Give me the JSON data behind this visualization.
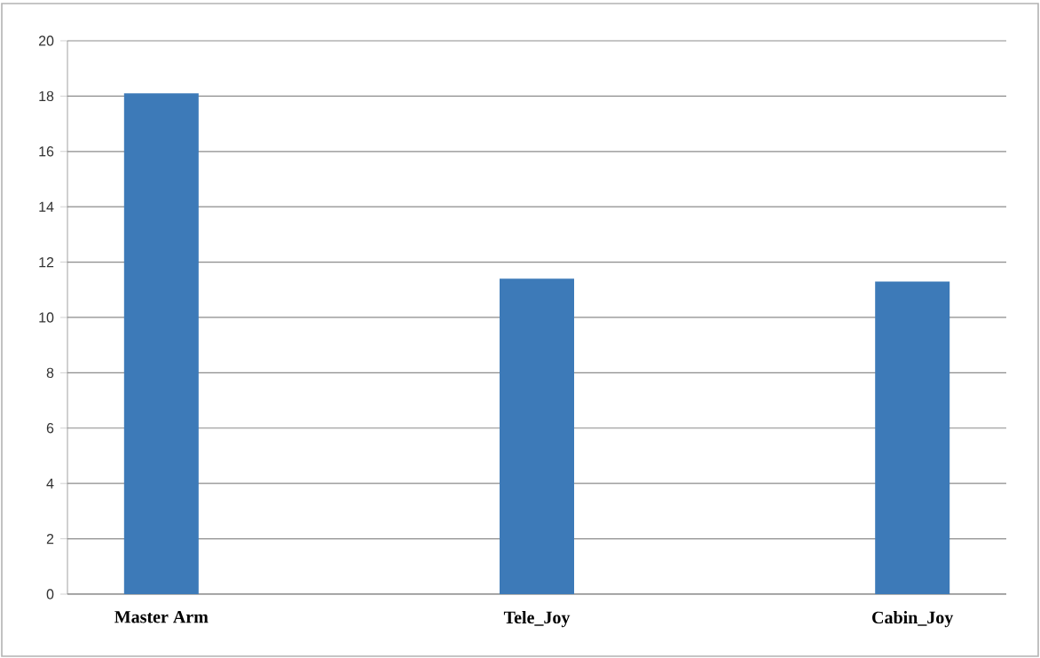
{
  "chart_data": {
    "type": "bar",
    "categories": [
      "Master Arm",
      null,
      "Tele_Joy",
      null,
      "Cabin_Joy"
    ],
    "values": [
      18.1,
      null,
      11.4,
      null,
      11.3
    ],
    "color": "#3d7ab8",
    "ylim": [
      0,
      20
    ],
    "yticks": [
      0,
      2,
      4,
      6,
      8,
      10,
      12,
      14,
      16,
      18,
      20
    ],
    "grid": "y"
  }
}
